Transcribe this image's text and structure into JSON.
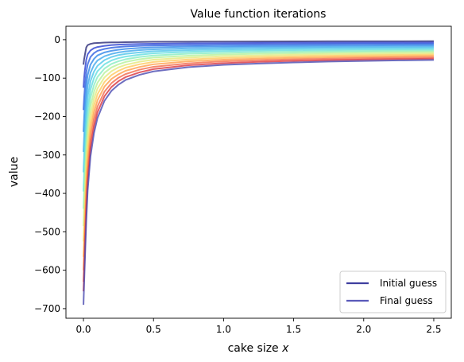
{
  "chart_data": {
    "type": "line",
    "title": "Value function iterations",
    "xlabel": "cake size x",
    "ylabel": "value",
    "xlim": [
      -0.125,
      2.625
    ],
    "ylim": [
      -725,
      35
    ],
    "xticks": [
      0.0,
      0.5,
      1.0,
      1.5,
      2.0,
      2.5
    ],
    "xtick_labels": [
      "0.0",
      "0.5",
      "1.0",
      "1.5",
      "2.0",
      "2.5"
    ],
    "yticks": [
      0,
      -100,
      -200,
      -300,
      -400,
      -500,
      -600,
      -700
    ],
    "ytick_labels": [
      "0",
      "−100",
      "−200",
      "−300",
      "−400",
      "−500",
      "−600",
      "−700"
    ],
    "grid": false,
    "legend_position": "lower-right",
    "legend": [
      "Initial guess",
      "Final guess"
    ],
    "legend_colors": [
      "#3f3f9f",
      "#5a5aba"
    ],
    "x": [
      0.0001,
      0.005,
      0.01,
      0.02,
      0.03,
      0.05,
      0.075,
      0.1,
      0.15,
      0.2,
      0.25,
      0.3,
      0.4,
      0.5,
      0.75,
      1.0,
      1.25,
      1.5,
      1.75,
      2.0,
      2.25,
      2.5
    ],
    "series": [
      {
        "color": "#2a2a78",
        "values": [
          -65,
          -50,
          -40,
          -20,
          -14,
          -11,
          -9,
          -8.5,
          -7.5,
          -7,
          -6.8,
          -6.5,
          -6,
          -5.5,
          -5,
          -4.8,
          -4.6,
          -4.4,
          -4.2,
          -4.1,
          -4,
          -3.9
        ]
      },
      {
        "color": "#2a3fcf",
        "values": [
          -125,
          -98,
          -80,
          -52,
          -38,
          -28,
          -22,
          -19,
          -16,
          -14,
          -13,
          -12,
          -11,
          -10.5,
          -9.5,
          -9,
          -8.6,
          -8.3,
          -8,
          -7.8,
          -7.6,
          -7.5
        ]
      },
      {
        "color": "#2c5ee0",
        "values": [
          -183,
          -150,
          -125,
          -85,
          -64,
          -45,
          -35,
          -29,
          -24,
          -21,
          -19,
          -17.5,
          -16,
          -15,
          -14,
          -13,
          -12.5,
          -12,
          -11.6,
          -11.2,
          -11,
          -10.8
        ]
      },
      {
        "color": "#2f86e8",
        "values": [
          -240,
          -200,
          -170,
          -120,
          -92,
          -65,
          -50,
          -41,
          -33,
          -29,
          -26,
          -24,
          -21.5,
          -20,
          -18,
          -17,
          -16.4,
          -15.8,
          -15.3,
          -14.9,
          -14.5,
          -14.2
        ]
      },
      {
        "color": "#3ea7ec",
        "values": [
          -292,
          -250,
          -215,
          -155,
          -120,
          -86,
          -66,
          -54,
          -43,
          -37,
          -33,
          -30.5,
          -27,
          -25,
          -22.5,
          -21,
          -20.2,
          -19.5,
          -18.9,
          -18.4,
          -18,
          -17.6
        ]
      },
      {
        "color": "#4dc5ea",
        "values": [
          -345,
          -300,
          -260,
          -190,
          -148,
          -108,
          -83,
          -68,
          -53,
          -45,
          -40,
          -37,
          -33,
          -30,
          -27,
          -25.3,
          -24.2,
          -23.3,
          -22.6,
          -22,
          -21.5,
          -21
        ]
      },
      {
        "color": "#62dde0",
        "values": [
          -395,
          -345,
          -300,
          -225,
          -177,
          -130,
          -100,
          -82,
          -64,
          -54,
          -48,
          -44,
          -39,
          -35.5,
          -31.5,
          -29.5,
          -28.2,
          -27.2,
          -26.4,
          -25.7,
          -25.1,
          -24.6
        ]
      },
      {
        "color": "#86ecc0",
        "values": [
          -440,
          -390,
          -340,
          -260,
          -206,
          -152,
          -118,
          -97,
          -75,
          -63,
          -56,
          -51,
          -45,
          -41,
          -36.5,
          -34,
          -32.4,
          -31.2,
          -30.2,
          -29.4,
          -28.7,
          -28.1
        ]
      },
      {
        "color": "#b5f19a",
        "values": [
          -485,
          -430,
          -380,
          -292,
          -234,
          -174,
          -136,
          -112,
          -86,
          -72,
          -64,
          -58,
          -51,
          -46.5,
          -41.5,
          -38.5,
          -36.7,
          -35.3,
          -34.2,
          -33.2,
          -32.4,
          -31.7
        ]
      },
      {
        "color": "#e4e87c",
        "values": [
          -525,
          -470,
          -418,
          -324,
          -262,
          -196,
          -154,
          -127,
          -98,
          -82,
          -72,
          -65.5,
          -57.5,
          -52,
          -46.5,
          -43,
          -41,
          -39.4,
          -38.1,
          -37.1,
          -36.2,
          -35.4
        ]
      },
      {
        "color": "#ffc95e",
        "values": [
          -565,
          -508,
          -455,
          -356,
          -290,
          -218,
          -172,
          -142,
          -110,
          -92,
          -81,
          -73,
          -64,
          -58,
          -51.5,
          -47.5,
          -45.2,
          -43.4,
          -42,
          -40.8,
          -39.8,
          -39
        ]
      },
      {
        "color": "#ff9f4a",
        "values": [
          -600,
          -545,
          -490,
          -388,
          -318,
          -240,
          -190,
          -158,
          -122,
          -102,
          -90,
          -81,
          -71,
          -64,
          -56.5,
          -52,
          -49.4,
          -47.4,
          -45.8,
          -44.5,
          -43.4,
          -42.5
        ]
      },
      {
        "color": "#f26a4a",
        "values": [
          -630,
          -578,
          -522,
          -418,
          -345,
          -262,
          -208,
          -174,
          -135,
          -113,
          -99,
          -89.5,
          -78,
          -70.5,
          -61.5,
          -56.5,
          -53.5,
          -51.3,
          -49.6,
          -48.2,
          -47,
          -46
        ]
      },
      {
        "color": "#d9353e",
        "values": [
          -655,
          -605,
          -550,
          -446,
          -370,
          -283,
          -226,
          -189,
          -147,
          -123,
          -108,
          -97.5,
          -85,
          -76.5,
          -66.5,
          -61,
          -57.7,
          -55.2,
          -53.3,
          -51.8,
          -50.5,
          -49.4
        ]
      },
      {
        "color": "#4a4ab0",
        "values": [
          -690,
          -632,
          -578,
          -472,
          -393,
          -304,
          -243,
          -204,
          -159,
          -133,
          -117,
          -105,
          -91.5,
          -82.5,
          -71.5,
          -65.5,
          -62,
          -59.2,
          -57,
          -55.3,
          -53.9,
          -52.7
        ]
      }
    ]
  }
}
